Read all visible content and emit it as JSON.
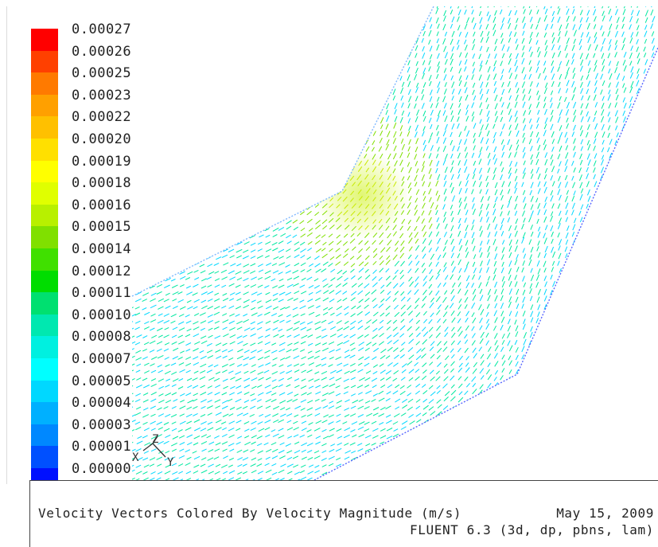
{
  "colorbar": {
    "labels": [
      "0.00027",
      "0.00026",
      "0.00025",
      "0.00023",
      "0.00022",
      "0.00020",
      "0.00019",
      "0.00018",
      "0.00016",
      "0.00015",
      "0.00014",
      "0.00012",
      "0.00011",
      "0.00010",
      "0.00008",
      "0.00007",
      "0.00005",
      "0.00004",
      "0.00003",
      "0.00001",
      "0.00000"
    ],
    "colors": [
      "#ff0000",
      "#ff4000",
      "#ff7a00",
      "#ffa000",
      "#ffc000",
      "#ffe000",
      "#ffff00",
      "#e0ff00",
      "#b8f000",
      "#80e000",
      "#40e000",
      "#00dd00",
      "#00e070",
      "#00e8b0",
      "#00f0e0",
      "#00ffff",
      "#00d8ff",
      "#00b0ff",
      "#0088ff",
      "#0050ff",
      "#0010ff"
    ]
  },
  "axes_triad": {
    "x_label": "X",
    "y_label": "Y",
    "z_label": "Z"
  },
  "title_box": {
    "caption": "Velocity Vectors Colored By Velocity Magnitude (m/s)",
    "date": "May 15, 2009",
    "solver": "FLUENT 6.3 (3d, dp, pbns, lam)"
  },
  "field_colors": {
    "boundary": "#6a7cff",
    "low": "#00d8ff",
    "mid": "#00e8a0",
    "high": "#7fe000",
    "peak": "#c8e800"
  }
}
